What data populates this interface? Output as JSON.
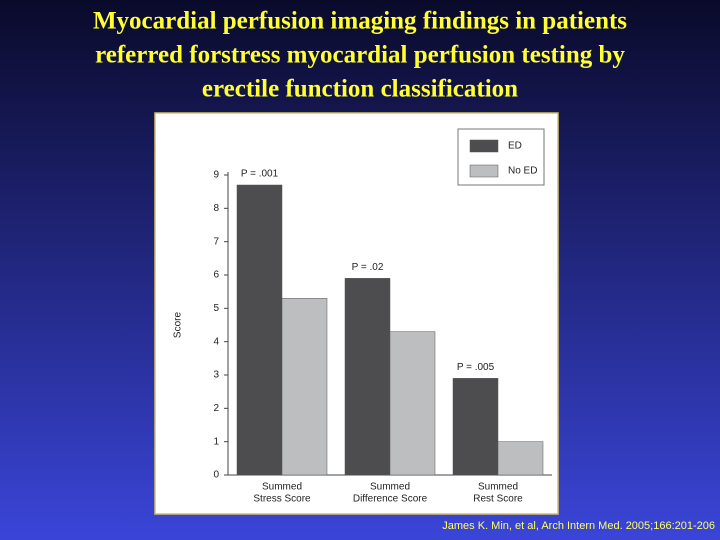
{
  "chart_data": {
    "type": "bar",
    "title": [
      "Myocardial perfusion imaging findings in patients",
      "referred forstress myocardial perfusion testing by",
      "erectile function classification"
    ],
    "categories": [
      [
        "Summed",
        "Stress Score"
      ],
      [
        "Summed",
        "Difference Score"
      ],
      [
        "Summed",
        "Rest Score"
      ]
    ],
    "series": [
      {
        "name": "ED",
        "color": "#4d4d4f",
        "values": [
          8.7,
          5.9,
          2.9
        ]
      },
      {
        "name": "No ED",
        "color": "#bdbec0",
        "values": [
          5.3,
          4.3,
          1.0
        ]
      }
    ],
    "annotations": [
      "P = .001",
      "P = .02",
      "P = .005"
    ],
    "ylabel": "Score",
    "ylim": [
      0,
      9
    ],
    "yticks": [
      0,
      1,
      2,
      3,
      4,
      5,
      6,
      7,
      8,
      9
    ],
    "legend": "top-right",
    "source": "James K. Min, et al, Arch Intern Med. 2005;166:201-206"
  }
}
